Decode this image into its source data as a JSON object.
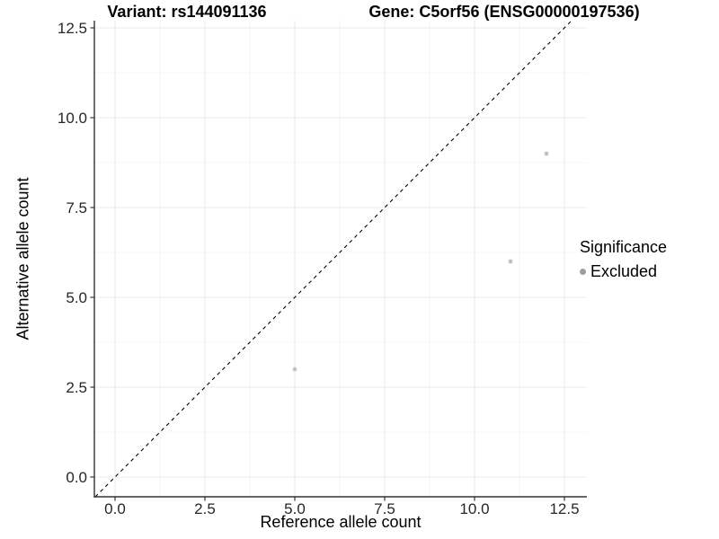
{
  "chart_data": {
    "type": "scatter",
    "title_left": "Variant: rs144091136",
    "title_right": "Gene: C5orf56 (ENSG00000197536)",
    "xlabel": "Reference allele count",
    "ylabel": "Alternative allele count",
    "xlim": [
      -0.575,
      13.125
    ],
    "ylim": [
      -0.55,
      12.7
    ],
    "x_ticks": [
      0.0,
      2.5,
      5.0,
      7.5,
      10.0,
      12.5
    ],
    "y_ticks": [
      0.0,
      2.5,
      5.0,
      7.5,
      10.0,
      12.5
    ],
    "x_tick_labels": [
      "0.0",
      "2.5",
      "5.0",
      "7.5",
      "10.0",
      "12.5"
    ],
    "y_tick_labels": [
      "0.0",
      "2.5",
      "5.0",
      "7.5",
      "10.0",
      "12.5"
    ],
    "x_minor_ticks": [
      1.25,
      3.75,
      6.25,
      8.75,
      11.25
    ],
    "y_minor_ticks": [
      1.25,
      3.75,
      6.25,
      8.75,
      11.25
    ],
    "grid": true,
    "legend_position": "right",
    "legend_title": "Significance",
    "series": [
      {
        "name": "Excluded",
        "points": [
          {
            "x": 5,
            "y": 3
          },
          {
            "x": 11,
            "y": 6
          },
          {
            "x": 12,
            "y": 9
          }
        ]
      }
    ],
    "reference_line": {
      "kind": "identity",
      "slope": 1,
      "intercept": 0,
      "linetype": "dashed"
    }
  },
  "colors": {
    "background": "#ffffff",
    "grid_major": "#ebebeb",
    "grid_minor": "#f4f4f4",
    "axis_line": "#333333",
    "tick_mark": "#333333",
    "tick_label": "#262626",
    "point": "#c2c2c2",
    "legend_marker": "#9e9e9e",
    "reference_line": "#000000"
  }
}
